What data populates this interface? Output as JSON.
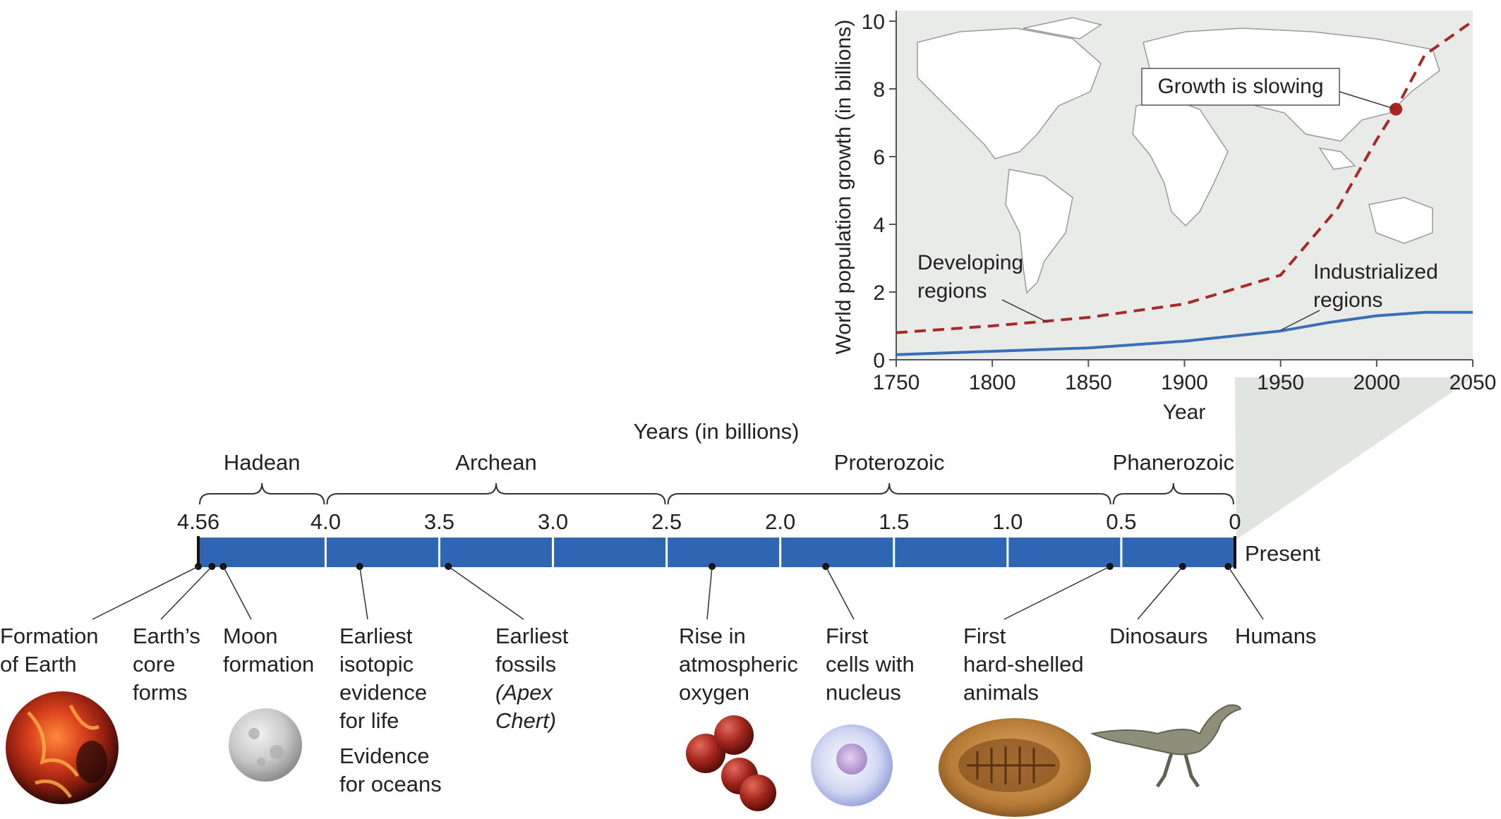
{
  "timeline": {
    "axis_title": "Years (in billions)",
    "end_label": "Present",
    "eras": [
      {
        "name": "Hadean",
        "from": 4.56,
        "to": 4.0
      },
      {
        "name": "Archean",
        "from": 4.0,
        "to": 2.5
      },
      {
        "name": "Proterozoic",
        "from": 2.5,
        "to": 0.541
      },
      {
        "name": "Phanerozoic",
        "from": 0.541,
        "to": 0
      }
    ],
    "ticks": [
      {
        "label": "4.56",
        "value": 4.56
      },
      {
        "label": "4.0",
        "value": 4.0
      },
      {
        "label": "3.5",
        "value": 3.5
      },
      {
        "label": "3.0",
        "value": 3.0
      },
      {
        "label": "2.5",
        "value": 2.5
      },
      {
        "label": "2.0",
        "value": 2.0
      },
      {
        "label": "1.5",
        "value": 1.5
      },
      {
        "label": "1.0",
        "value": 1.0
      },
      {
        "label": "0.5",
        "value": 0.5
      },
      {
        "label": "0",
        "value": 0
      }
    ],
    "events": [
      {
        "id": "formation-of-earth",
        "lines": [
          "Formation",
          "of Earth"
        ],
        "value": 4.56
      },
      {
        "id": "earths-core-forms",
        "lines": [
          "Earth’s",
          "core",
          "forms"
        ],
        "value": 4.5
      },
      {
        "id": "moon-formation",
        "lines": [
          "Moon",
          "formation"
        ],
        "value": 4.45
      },
      {
        "id": "earliest-isotopic-evidence",
        "lines": [
          "Earliest",
          "isotopic",
          "evidence",
          "for life"
        ],
        "extra": [
          "Evidence",
          "for oceans"
        ],
        "value": 3.85
      },
      {
        "id": "earliest-fossils",
        "lines": [
          "Earliest",
          "fossils"
        ],
        "italic_line": "(Apex",
        "italic_line2": "Chert)",
        "value": 3.46
      },
      {
        "id": "rise-in-oxygen",
        "lines": [
          "Rise in",
          "atmospheric",
          "oxygen"
        ],
        "value": 2.3
      },
      {
        "id": "first-cells-with-nucleus",
        "lines": [
          "First",
          "cells with",
          "nucleus"
        ],
        "value": 1.8
      },
      {
        "id": "first-hard-shelled-animals",
        "lines": [
          "First",
          "hard-shelled",
          "animals"
        ],
        "value": 0.55
      },
      {
        "id": "dinosaurs",
        "lines": [
          "Dinosaurs"
        ],
        "value": 0.23
      },
      {
        "id": "humans",
        "lines": [
          "Humans"
        ],
        "value": 0.03
      }
    ]
  },
  "chart_data": {
    "type": "line",
    "title": "",
    "xlabel": "Year",
    "ylabel": "World population growth (in billions)",
    "xlim": [
      1750,
      2050
    ],
    "ylim": [
      0,
      10
    ],
    "xticks": [
      1750,
      1800,
      1850,
      1900,
      1950,
      2000,
      2050
    ],
    "yticks": [
      0,
      2,
      4,
      6,
      8,
      10
    ],
    "series": [
      {
        "name": "Developing regions",
        "style": "dashed",
        "color": "#a52a2a",
        "x": [
          1750,
          1800,
          1850,
          1900,
          1950,
          1980,
          2000,
          2010,
          2025,
          2050
        ],
        "y": [
          0.8,
          1.0,
          1.25,
          1.65,
          2.5,
          4.5,
          6.5,
          7.4,
          9.0,
          10.0
        ]
      },
      {
        "name": "Industrialized regions",
        "style": "solid",
        "color": "#3a6fb8",
        "x": [
          1750,
          1800,
          1850,
          1900,
          1950,
          1975,
          2000,
          2025,
          2050
        ],
        "y": [
          0.15,
          0.25,
          0.35,
          0.55,
          0.85,
          1.1,
          1.3,
          1.4,
          1.4
        ]
      }
    ],
    "annotations": [
      {
        "text": "Growth is slowing",
        "x": 2010,
        "y": 7.4
      },
      {
        "text_lines": [
          "Developing",
          "regions"
        ],
        "target_x": 1830,
        "target_y": 1.1
      },
      {
        "text_lines": [
          "Industrialized",
          "regions"
        ],
        "target_x": 1945,
        "target_y": 0.9
      }
    ]
  },
  "colors": {
    "bar": "#2f66b3",
    "dev": "#a52a2a",
    "ind": "#3a6fb8",
    "map_bg": "#e8ebe8",
    "zoom": "#d6dcd6"
  }
}
